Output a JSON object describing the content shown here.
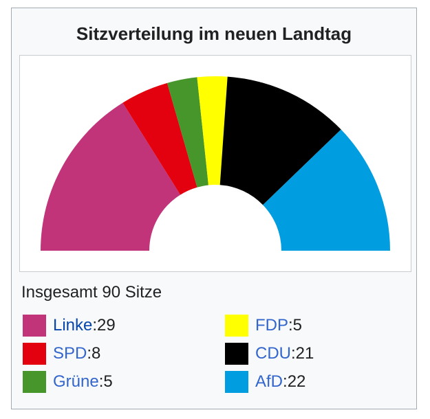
{
  "infobox": {
    "title": "Sitzverteilung im neuen Landtag",
    "total_label": "Insgesamt 90 Sitze"
  },
  "chart_data": {
    "type": "pie",
    "variant": "semicircle-parliament",
    "title": "Sitzverteilung im neuen Landtag",
    "total": 90,
    "series": [
      {
        "name": "Linke",
        "value": 29,
        "color": "#c1347a"
      },
      {
        "name": "SPD",
        "value": 8,
        "color": "#e3000f"
      },
      {
        "name": "Grüne",
        "value": 5,
        "color": "#46962b"
      },
      {
        "name": "FDP",
        "value": 5,
        "color": "#ffff00"
      },
      {
        "name": "CDU",
        "value": 21,
        "color": "#000000"
      },
      {
        "name": "AfD",
        "value": 22,
        "color": "#009ee0"
      }
    ]
  },
  "legend": [
    {
      "party": "Linke",
      "sep": ": ",
      "value": "29",
      "color": "#c1347a"
    },
    {
      "party": "SPD",
      "sep": ": ",
      "value": "8",
      "color": "#e3000f"
    },
    {
      "party": "Grüne",
      "sep": ": ",
      "value": "5",
      "color": "#46962b"
    },
    {
      "party": "FDP",
      "sep": ": ",
      "value": "5",
      "color": "#ffff00"
    },
    {
      "party": "CDU",
      "sep": ": ",
      "value": "21",
      "color": "#000000"
    },
    {
      "party": "AfD",
      "sep": ": ",
      "value": "22",
      "color": "#009ee0"
    }
  ]
}
